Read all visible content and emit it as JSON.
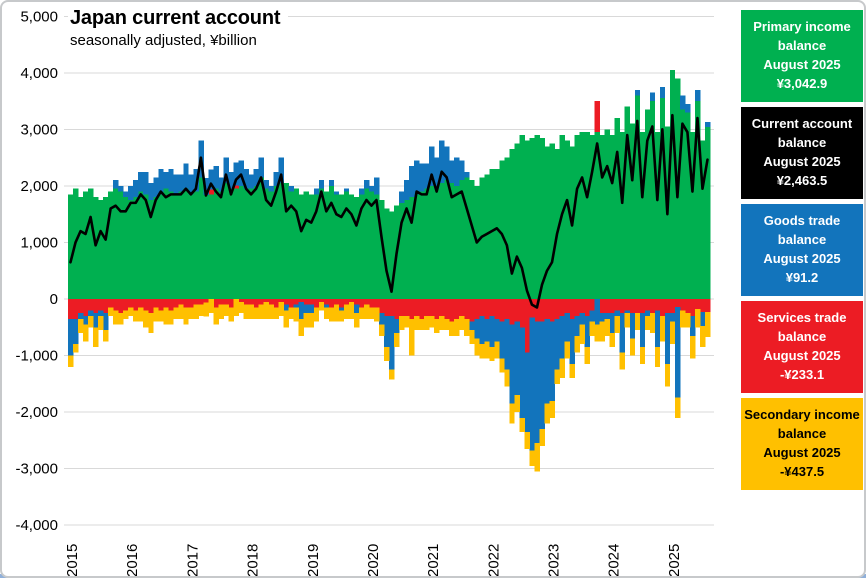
{
  "title": "Japan current account",
  "subtitle": "seasonally adjusted, ¥billion",
  "legend": {
    "boxes": [
      {
        "label": "Primary income balance",
        "period": "August 2025",
        "value": "¥3,042.9",
        "bg": "#00B050",
        "fg": "#FFFFFF"
      },
      {
        "label": "Current account balance",
        "period": "August 2025",
        "value": "¥2,463.5",
        "bg": "#000000",
        "fg": "#FFFFFF"
      },
      {
        "label": "Goods trade balance",
        "period": "August 2025",
        "value": "¥91.2",
        "bg": "#1274BC",
        "fg": "#FFFFFF"
      },
      {
        "label": "Services trade balance",
        "period": "August 2025",
        "value": "-¥233.1",
        "bg": "#EC1C24",
        "fg": "#FFFFFF"
      },
      {
        "label": "Secondary income balance",
        "period": "August 2025",
        "value": "-¥437.5",
        "bg": "#FFC000",
        "fg": "#000000"
      }
    ]
  },
  "chart_data": {
    "type": "bar",
    "subtype": "stacked-monthly-bars-with-line-overlay",
    "title": "Japan current account",
    "subtitle": "seasonally adjusted, ¥billion",
    "frequency": "monthly",
    "x_start": "2015-01",
    "x_end": "2025-08",
    "n_points": 128,
    "x_tick_labels": [
      "2015",
      "2016",
      "2017",
      "2018",
      "2019",
      "2020",
      "2021",
      "2022",
      "2023",
      "2024",
      "2025"
    ],
    "y_tick_values": [
      5000,
      4000,
      3000,
      2000,
      1000,
      0,
      -1000,
      -2000,
      -3000,
      -4000
    ],
    "y_tick_labels": [
      "5,000",
      "4,000",
      "3,000",
      "2,000",
      "1,000",
      "0",
      "-1,000",
      "-2,000",
      "-3,000",
      "-4,000"
    ],
    "ylim": [
      -4000,
      5000
    ],
    "grid": "horizontal",
    "gridline_color": "#D9D9D9",
    "legend_position": "right",
    "series": [
      {
        "name": "Primary income balance",
        "type": "bar",
        "color": "#00B050",
        "values": [
          1850,
          1950,
          1800,
          1900,
          1950,
          1800,
          1750,
          1800,
          1900,
          1950,
          1900,
          1800,
          1750,
          1800,
          1900,
          1850,
          1750,
          1800,
          1850,
          1950,
          1900,
          1850,
          1900,
          1950,
          1850,
          1900,
          2150,
          1840,
          1850,
          1950,
          1900,
          2050,
          1950,
          1950,
          2000,
          1950,
          1950,
          2000,
          2150,
          1950,
          1900,
          2000,
          2050,
          2050,
          1900,
          1950,
          1850,
          1900,
          1850,
          1850,
          1950,
          1900,
          2000,
          1850,
          1850,
          1900,
          1850,
          1800,
          1850,
          1950,
          1900,
          1850,
          1750,
          1600,
          1550,
          1650,
          1700,
          1750,
          1800,
          1850,
          1900,
          1950,
          2000,
          1950,
          2050,
          2100,
          2050,
          2000,
          2100,
          2150,
          2100,
          2000,
          2150,
          2200,
          2300,
          2300,
          2450,
          2500,
          2650,
          2750,
          2900,
          2800,
          2850,
          2900,
          2850,
          2700,
          2750,
          2650,
          2900,
          2800,
          2700,
          2900,
          2950,
          2950,
          2900,
          2950,
          2900,
          3000,
          2900,
          3200,
          2950,
          3400,
          3100,
          3600,
          2950,
          3350,
          3500,
          2950,
          3550,
          3050,
          4050,
          3900,
          3350,
          3300,
          2950,
          3500,
          2800,
          3042.9
        ]
      },
      {
        "name": "Services trade balance",
        "type": "bar",
        "color": "#EC1C24",
        "values": [
          -350,
          -350,
          -250,
          -300,
          -200,
          -250,
          -200,
          -250,
          -150,
          -200,
          -250,
          -200,
          -150,
          -200,
          -150,
          -200,
          -250,
          -150,
          -200,
          -150,
          -200,
          -150,
          -100,
          -150,
          -150,
          -100,
          -100,
          -60,
          90,
          -150,
          -100,
          -100,
          -150,
          60,
          -50,
          -100,
          -100,
          -150,
          -100,
          -50,
          -100,
          -150,
          -50,
          -100,
          -150,
          -100,
          -50,
          -100,
          -100,
          -150,
          -50,
          -100,
          -150,
          -100,
          -150,
          -100,
          -50,
          -100,
          -150,
          -100,
          -150,
          -150,
          -250,
          -300,
          -300,
          -350,
          -300,
          -300,
          -350,
          -300,
          -350,
          -300,
          -300,
          -350,
          -300,
          -350,
          -400,
          -350,
          -300,
          -350,
          -400,
          -350,
          -300,
          -350,
          -300,
          -350,
          -400,
          -350,
          -450,
          -400,
          -500,
          -950,
          -330,
          -400,
          -400,
          -350,
          -400,
          -350,
          -300,
          -250,
          -350,
          -300,
          -250,
          -300,
          -200,
          550,
          -250,
          -250,
          -250,
          -200,
          -250,
          -200,
          -250,
          -250,
          -250,
          -200,
          -250,
          -200,
          -300,
          -250,
          -250,
          -140,
          -200,
          -250,
          -300,
          -180,
          -230,
          -233.1
        ]
      },
      {
        "name": "Goods trade balance",
        "type": "bar",
        "color": "#1274BC",
        "values": [
          -650,
          -450,
          -100,
          -150,
          -100,
          -250,
          -100,
          -300,
          0,
          150,
          100,
          100,
          250,
          300,
          350,
          400,
          300,
          350,
          450,
          300,
          400,
          350,
          300,
          450,
          350,
          400,
          650,
          300,
          350,
          400,
          250,
          450,
          300,
          400,
          450,
          350,
          250,
          300,
          350,
          150,
          100,
          250,
          450,
          -100,
          100,
          -50,
          -300,
          -150,
          -150,
          100,
          150,
          -50,
          100,
          50,
          -50,
          50,
          0,
          -150,
          100,
          150,
          100,
          300,
          -200,
          -550,
          -950,
          -250,
          200,
          350,
          550,
          600,
          500,
          450,
          700,
          550,
          750,
          600,
          400,
          500,
          350,
          100,
          -150,
          -350,
          -500,
          -400,
          -550,
          -400,
          -650,
          -900,
          -1400,
          -1300,
          -1600,
          -1400,
          -2350,
          -2150,
          -1900,
          -1500,
          -1400,
          -900,
          -750,
          -500,
          -800,
          -350,
          -200,
          -550,
          -200,
          -450,
          -150,
          -100,
          -350,
          -100,
          -700,
          -50,
          -450,
          100,
          -600,
          -100,
          150,
          -650,
          200,
          -900,
          -150,
          -1600,
          250,
          150,
          -350,
          200,
          -250,
          91.2
        ]
      },
      {
        "name": "Secondary income balance",
        "type": "bar",
        "color": "#FFC000",
        "values": [
          -200,
          -150,
          -250,
          -300,
          -200,
          -350,
          -250,
          -200,
          -150,
          -250,
          -200,
          -150,
          -150,
          -200,
          -250,
          -300,
          -350,
          -250,
          -200,
          -300,
          -250,
          -200,
          -250,
          -300,
          -200,
          -250,
          -200,
          -250,
          -250,
          -300,
          -250,
          -200,
          -250,
          -300,
          -200,
          -250,
          -250,
          -200,
          -250,
          -300,
          -250,
          -200,
          -250,
          -300,
          -200,
          -250,
          -300,
          -250,
          -250,
          -250,
          -150,
          -200,
          -250,
          -300,
          -200,
          -250,
          -300,
          -250,
          -200,
          -250,
          -200,
          -250,
          -200,
          -250,
          -170,
          -250,
          -250,
          -200,
          -650,
          -250,
          -200,
          -250,
          -200,
          -250,
          -250,
          -200,
          -250,
          -300,
          -250,
          -300,
          -250,
          -300,
          -250,
          -300,
          -250,
          -300,
          -250,
          -300,
          -350,
          -300,
          -250,
          -300,
          -270,
          -500,
          -300,
          -350,
          -300,
          -250,
          -350,
          -300,
          -250,
          -300,
          -350,
          -300,
          -250,
          -300,
          -350,
          -300,
          -250,
          -300,
          -300,
          -250,
          -300,
          -300,
          -300,
          -250,
          -350,
          -350,
          -450,
          -400,
          -400,
          -360,
          -300,
          -250,
          -400,
          -320,
          -370,
          -437.5
        ]
      },
      {
        "name": "Current account balance",
        "type": "line",
        "color": "#000000",
        "derived_from": "sum_of_bar_series",
        "last_value": 2463.5
      }
    ]
  }
}
